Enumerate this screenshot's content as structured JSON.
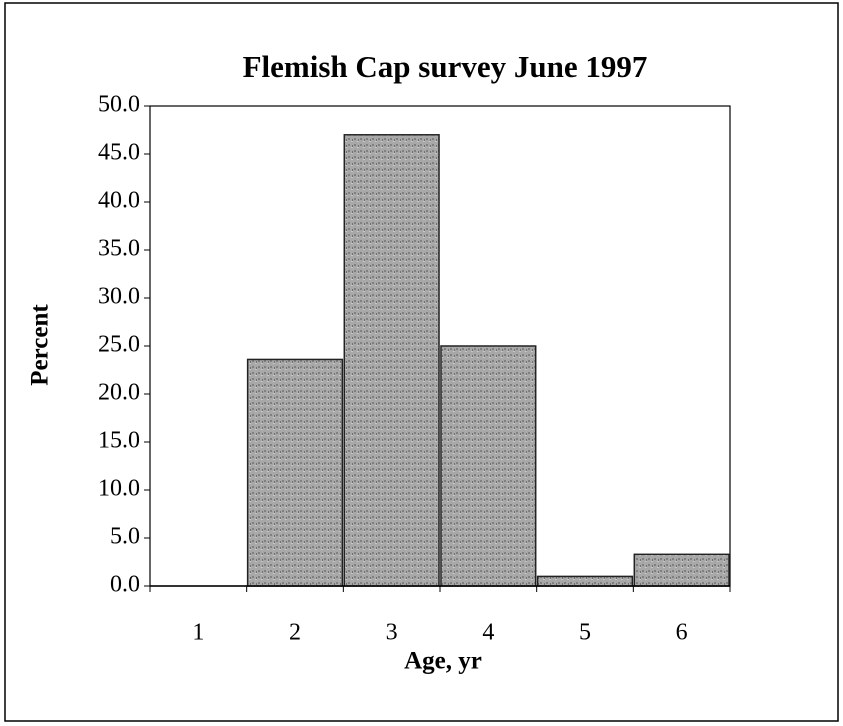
{
  "chart_data": {
    "type": "bar",
    "title": "Flemish Cap survey June 1997",
    "x_label": "Age, yr",
    "y_label": "Percent",
    "categories": [
      "1",
      "2",
      "3",
      "4",
      "5",
      "6"
    ],
    "values": [
      0,
      23.6,
      47.0,
      25.0,
      1.0,
      3.3
    ],
    "color": "#a0a0a0",
    "ylim": [
      0,
      50
    ],
    "yticks": [
      {
        "value": 0,
        "label": "0.0"
      },
      {
        "value": 5,
        "label": "5.0"
      },
      {
        "value": 10,
        "label": "10.0"
      },
      {
        "value": 15,
        "label": "15.0"
      },
      {
        "value": 20,
        "label": "20.0"
      },
      {
        "value": 25,
        "label": "25.0"
      },
      {
        "value": 30,
        "label": "30.0"
      },
      {
        "value": 35,
        "label": "35.0"
      },
      {
        "value": 40,
        "label": "40.0"
      },
      {
        "value": 45,
        "label": "45.0"
      },
      {
        "value": 50,
        "label": "50.0"
      }
    ],
    "grid": false
  }
}
